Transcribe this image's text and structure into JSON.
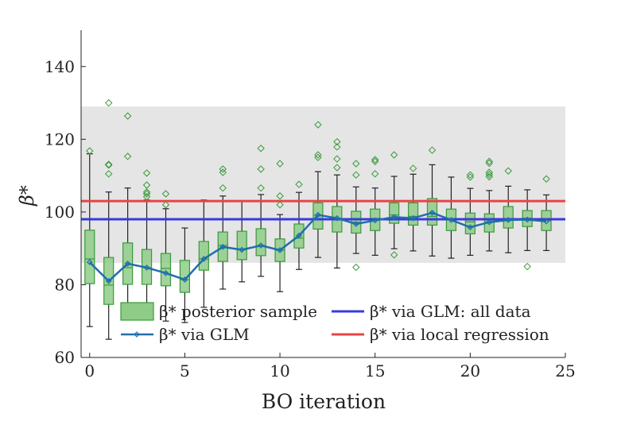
{
  "chart_data": {
    "type": "box",
    "title": "",
    "xlabel": "BO iteration",
    "ylabel": "β*",
    "xlim": [
      -0.45,
      25
    ],
    "ylim": [
      60,
      150
    ],
    "xticks": [
      0,
      5,
      10,
      15,
      20,
      25
    ],
    "yticks": [
      60,
      80,
      100,
      120,
      140
    ],
    "xtick_labels": [
      "0",
      "5",
      "10",
      "15",
      "20",
      "25"
    ],
    "ytick_labels": [
      "60",
      "80",
      "100",
      "120",
      "140"
    ],
    "grid": false,
    "legend_placement": "bottom",
    "legend": [
      {
        "label": "β* posterior sample",
        "kind": "box"
      },
      {
        "label": "β* via GLM",
        "kind": "line-marker"
      },
      {
        "label": "β* via GLM: all data",
        "kind": "hline-blue"
      },
      {
        "label": "β* via local regression",
        "kind": "hline-red"
      }
    ],
    "band": {
      "low": 86,
      "high": 129
    },
    "glm_all_data": 98,
    "local_regression": 103,
    "colors": {
      "band": "#e5e5e5",
      "box_fill": "#8fcc88",
      "box_edge": "#3a9a3a",
      "glm": "#1f6fad",
      "glm_all": "#3a3ae0",
      "local": "#e84444",
      "outlier": "#3a9a3a"
    },
    "boxes": [
      {
        "x": 0,
        "q1": 80.3,
        "median": 87.1,
        "q3": 95.0,
        "wlo": 68.5,
        "whi": 116.0,
        "glm": 86.2,
        "outliers": [
          116.8
        ]
      },
      {
        "x": 1,
        "q1": 74.6,
        "median": 79.9,
        "q3": 87.5,
        "wlo": 65.0,
        "whi": 105.5,
        "glm": 81.0,
        "outliers": [
          130,
          113.1,
          112.9,
          110.5
        ]
      },
      {
        "x": 2,
        "q1": 80.1,
        "median": 84.7,
        "q3": 91.5,
        "wlo": 71.6,
        "whi": 106.6,
        "glm": 85.8,
        "outliers": [
          126.4,
          115.3
        ]
      },
      {
        "x": 3,
        "q1": 80.1,
        "median": 84.7,
        "q3": 89.7,
        "wlo": 74.2,
        "whi": 103.3,
        "glm": 84.7,
        "outliers": [
          110.7,
          107.4,
          105.5,
          105.0,
          104.2
        ]
      },
      {
        "x": 4,
        "q1": 79.7,
        "median": 84.5,
        "q3": 88.6,
        "wlo": 70.0,
        "whi": 100.9,
        "glm": 83.2,
        "outliers": [
          105.0,
          102.0
        ]
      },
      {
        "x": 5,
        "q1": 77.9,
        "median": 81.4,
        "q3": 86.7,
        "wlo": 69.6,
        "whi": 95.6,
        "glm": 81.4,
        "outliers": []
      },
      {
        "x": 6,
        "q1": 84.0,
        "median": 87.1,
        "q3": 91.9,
        "wlo": 73.8,
        "whi": 103.3,
        "glm": 87.1,
        "outliers": []
      },
      {
        "x": 7,
        "q1": 86.4,
        "median": 90.8,
        "q3": 94.5,
        "wlo": 78.8,
        "whi": 104.4,
        "glm": 90.4,
        "outliers": [
          111.8,
          110.9,
          106.6
        ]
      },
      {
        "x": 8,
        "q1": 86.9,
        "median": 89.6,
        "q3": 94.7,
        "wlo": 80.8,
        "whi": 103.0,
        "glm": 89.6,
        "outliers": []
      },
      {
        "x": 9,
        "q1": 88.0,
        "median": 90.8,
        "q3": 95.4,
        "wlo": 82.3,
        "whi": 104.8,
        "glm": 90.8,
        "outliers": [
          117.5,
          111.8,
          106.6
        ]
      },
      {
        "x": 10,
        "q1": 86.4,
        "median": 89.5,
        "q3": 92.6,
        "wlo": 78.1,
        "whi": 99.3,
        "glm": 89.5,
        "outliers": [
          113.3,
          104.4,
          102.0
        ]
      },
      {
        "x": 11,
        "q1": 90.1,
        "median": 92.8,
        "q3": 96.7,
        "wlo": 84.2,
        "whi": 105.4,
        "glm": 93.5,
        "outliers": [
          107.6
        ]
      },
      {
        "x": 12,
        "q1": 95.3,
        "median": 99.1,
        "q3": 102.5,
        "wlo": 87.5,
        "whi": 111.1,
        "glm": 99.2,
        "outliers": [
          124,
          115.7,
          115.0
        ]
      },
      {
        "x": 13,
        "q1": 94.5,
        "median": 98.3,
        "q3": 101.5,
        "wlo": 84.6,
        "whi": 110.2,
        "glm": 98.3,
        "outliers": [
          119.3,
          117.9,
          114.6,
          112.2
        ]
      },
      {
        "x": 14,
        "q1": 94.2,
        "median": 97.2,
        "q3": 100.2,
        "wlo": 88.6,
        "whi": 106.9,
        "glm": 96.7,
        "outliers": [
          113.3,
          110.2,
          84.8
        ]
      },
      {
        "x": 15,
        "q1": 94.9,
        "median": 97.7,
        "q3": 100.8,
        "wlo": 88.1,
        "whi": 106.6,
        "glm": 97.7,
        "outliers": [
          114.4,
          113.9,
          110.5
        ]
      },
      {
        "x": 16,
        "q1": 96.9,
        "median": 99.2,
        "q3": 102.5,
        "wlo": 89.9,
        "whi": 109.8,
        "glm": 98.6,
        "outliers": [
          115.7,
          88.2
        ]
      },
      {
        "x": 17,
        "q1": 96.4,
        "median": 98.8,
        "q3": 102.5,
        "wlo": 89.3,
        "whi": 110.4,
        "glm": 98.3,
        "outliers": [
          112.0
        ]
      },
      {
        "x": 18,
        "q1": 96.4,
        "median": 98.8,
        "q3": 103.7,
        "wlo": 87.9,
        "whi": 113.0,
        "glm": 99.8,
        "outliers": [
          117.0
        ]
      },
      {
        "x": 19,
        "q1": 94.9,
        "median": 97.9,
        "q3": 100.8,
        "wlo": 87.3,
        "whi": 109.6,
        "glm": 97.8,
        "outliers": []
      },
      {
        "x": 20,
        "q1": 94.0,
        "median": 97.3,
        "q3": 99.7,
        "wlo": 88.1,
        "whi": 106.5,
        "glm": 95.8,
        "outliers": [
          110.2,
          109.6
        ]
      },
      {
        "x": 21,
        "q1": 94.5,
        "median": 97.3,
        "q3": 99.5,
        "wlo": 89.3,
        "whi": 105.9,
        "glm": 97.2,
        "outliers": [
          113.9,
          113.4,
          110.9,
          110.3,
          109.7
        ]
      },
      {
        "x": 22,
        "q1": 95.6,
        "median": 97.9,
        "q3": 101.5,
        "wlo": 88.8,
        "whi": 107.1,
        "glm": 97.8,
        "outliers": [
          111.3
        ]
      },
      {
        "x": 23,
        "q1": 96.0,
        "median": 98.3,
        "q3": 100.4,
        "wlo": 89.4,
        "whi": 106.1,
        "glm": 97.9,
        "outliers": [
          85.0
        ]
      },
      {
        "x": 24,
        "q1": 94.9,
        "median": 97.6,
        "q3": 100.4,
        "wlo": 89.4,
        "whi": 104.7,
        "glm": 97.4,
        "outliers": [
          109.1
        ]
      }
    ]
  }
}
